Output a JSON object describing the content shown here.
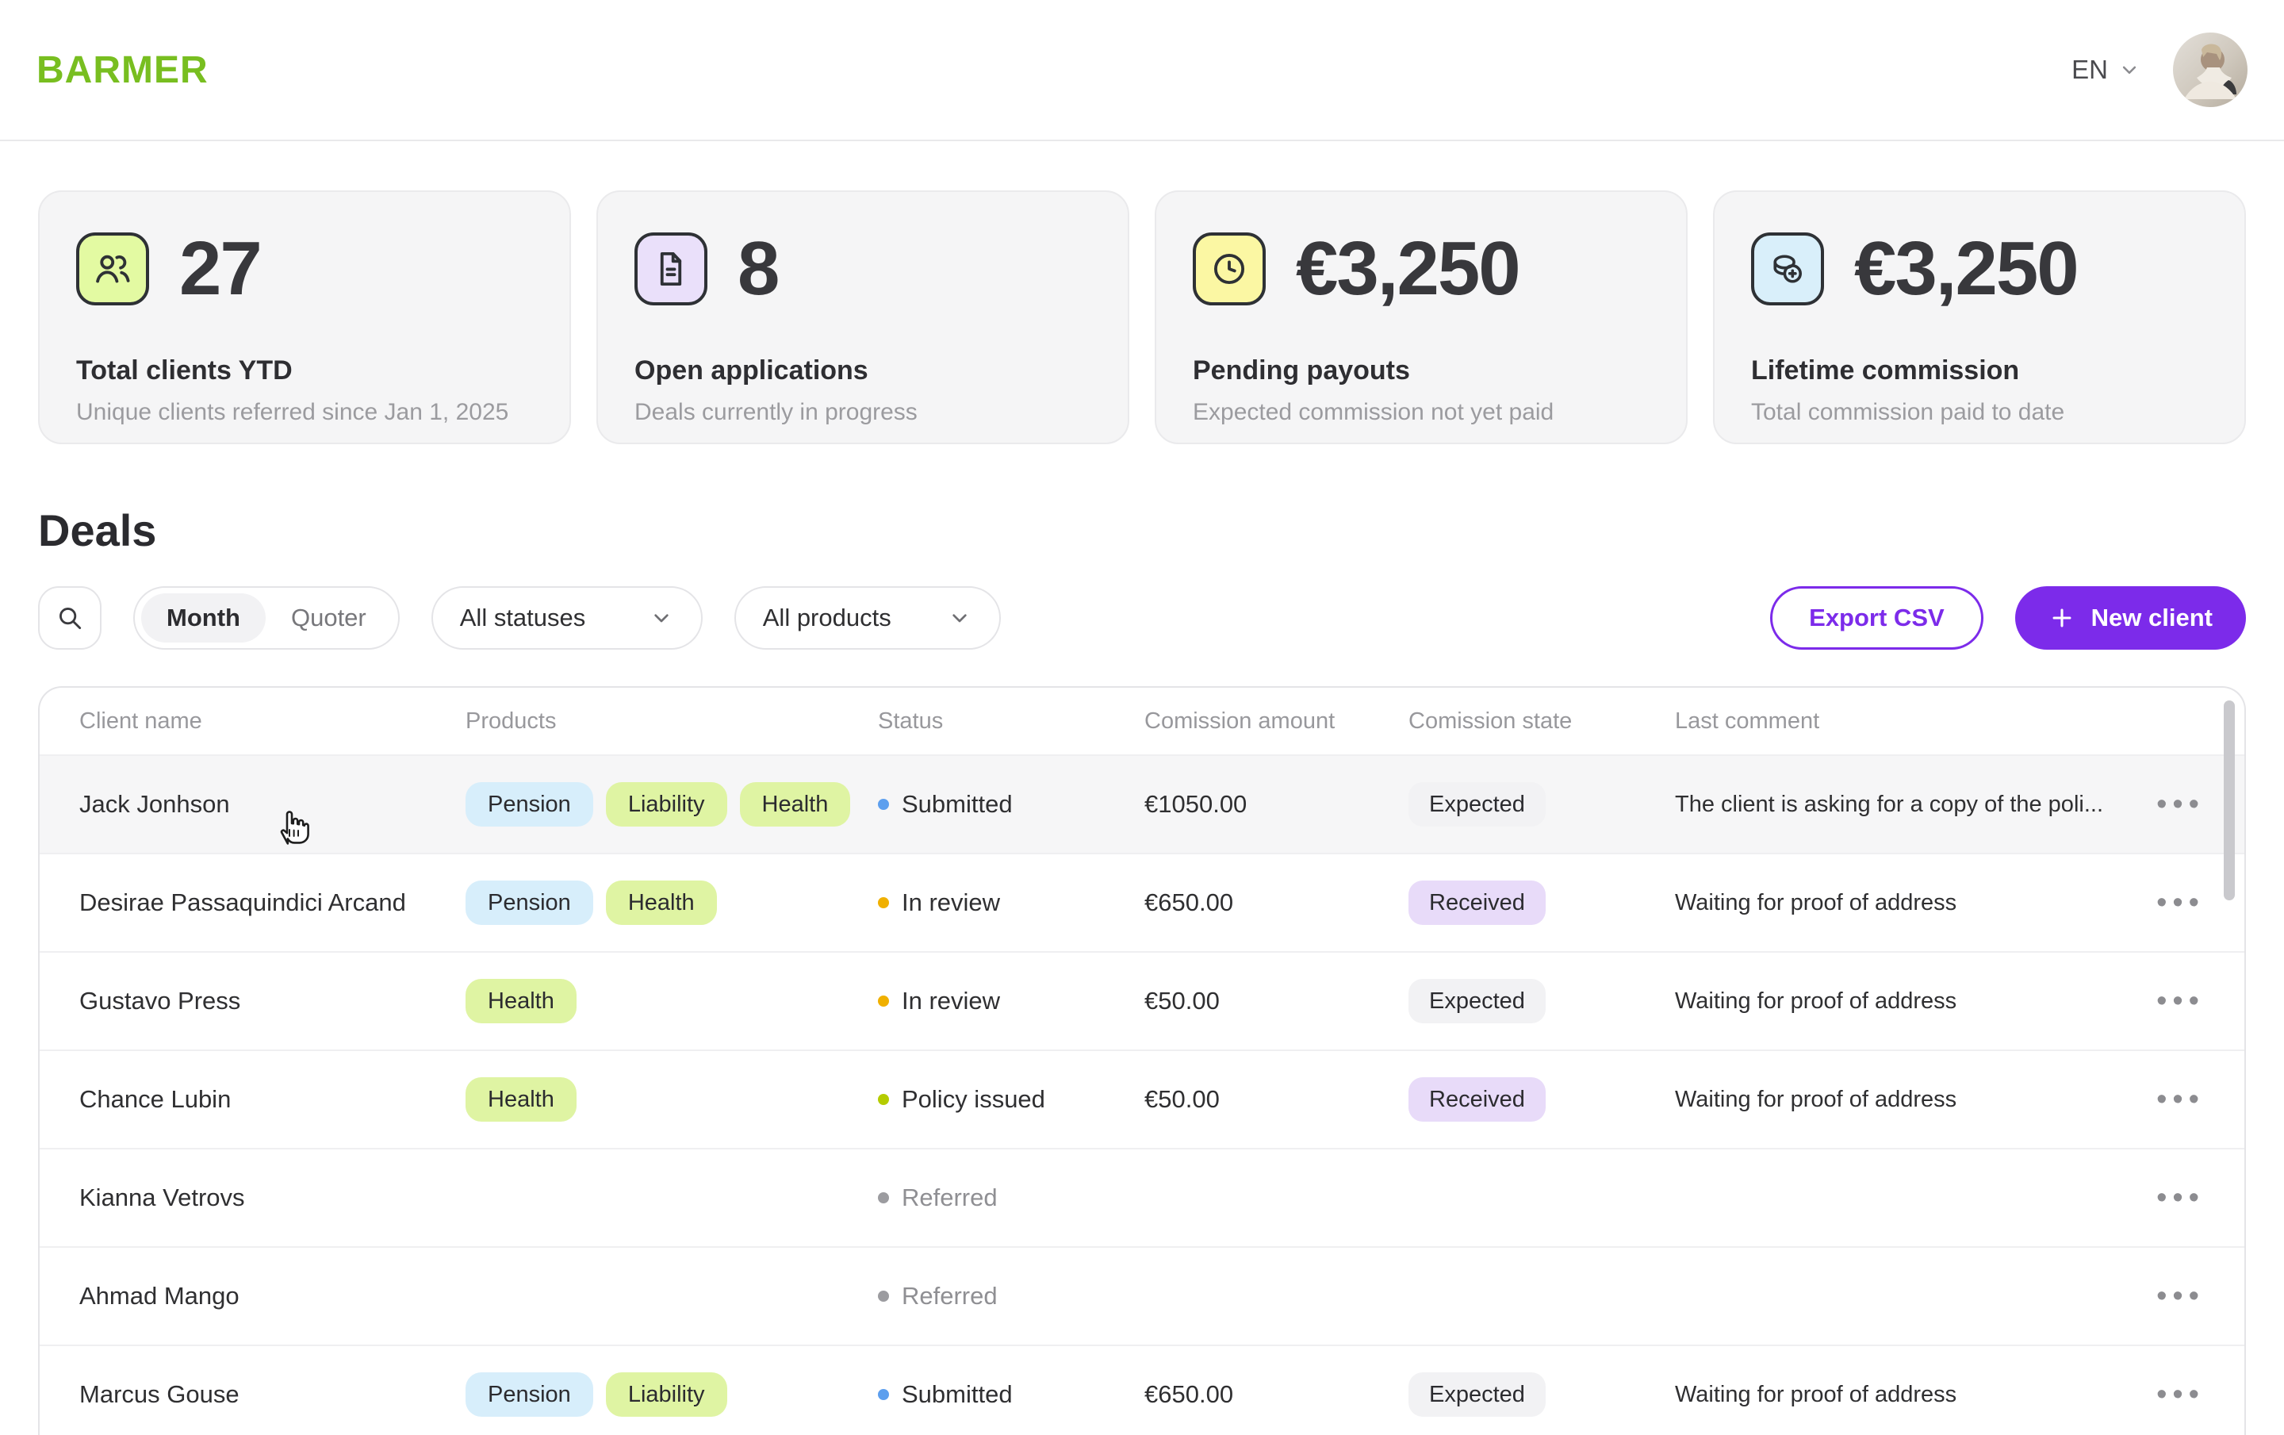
{
  "colors": {
    "brand_green": "#78BE20",
    "accent_purple": "#7C2BEA",
    "tags": {
      "Pension": "#D7EEFB",
      "Liability": "#DFF4A3",
      "Health": "#DFF4A3"
    },
    "states": {
      "Expected": "#F2F2F4",
      "Received": "#E8DBF9"
    },
    "status_dots": {
      "submitted": "#5D9FEE",
      "in_review": "#F0B000",
      "policy_issued": "#B5CC00",
      "referred": "#9C9CA0"
    }
  },
  "header": {
    "logo": "BARMER",
    "language": "EN"
  },
  "stats": [
    {
      "icon": "users-icon",
      "icon_bg": "#E3FAA2",
      "value": "27",
      "title": "Total clients YTD",
      "subtitle": "Unique clients referred since Jan 1, 2025"
    },
    {
      "icon": "document-icon",
      "icon_bg": "#EAE0FA",
      "value": "8",
      "title": "Open applications",
      "subtitle": "Deals currently in progress"
    },
    {
      "icon": "clock-icon",
      "icon_bg": "#FBF7A3",
      "value": "€3,250",
      "title": "Pending payouts",
      "subtitle": "Expected commission not yet paid"
    },
    {
      "icon": "coins-icon",
      "icon_bg": "#D9EFFA",
      "value": "€3,250",
      "title": "Lifetime commission",
      "subtitle": "Total commission paid to date"
    }
  ],
  "deals": {
    "title": "Deals",
    "filters": {
      "month_label": "Month",
      "quoter_label": "Quoter",
      "active_period": "Month",
      "statuses_value": "All statuses",
      "products_value": "All products"
    },
    "actions": {
      "export_label": "Export CSV",
      "new_client_label": "New client"
    },
    "table": {
      "columns": [
        "Client name",
        "Products",
        "Status",
        "Comission amount",
        "Comission state",
        "Last comment"
      ],
      "row_menu_glyph": "•••",
      "rows": [
        {
          "name": "Jack Jonhson",
          "products": [
            "Pension",
            "Liability",
            "Health"
          ],
          "status": {
            "label": "Submitted",
            "key": "submitted"
          },
          "amount": "€1050.00",
          "state": "Expected",
          "comment": "The client is asking for a copy of the poli...",
          "highlighted": true
        },
        {
          "name": "Desirae Passaquindici Arcand",
          "products": [
            "Pension",
            "Health"
          ],
          "status": {
            "label": "In review",
            "key": "in_review"
          },
          "amount": "€650.00",
          "state": "Received",
          "comment": "Waiting for proof of address",
          "highlighted": false
        },
        {
          "name": "Gustavo Press",
          "products": [
            "Health"
          ],
          "status": {
            "label": "In review",
            "key": "in_review"
          },
          "amount": "€50.00",
          "state": "Expected",
          "comment": "Waiting for proof of address",
          "highlighted": false
        },
        {
          "name": "Chance Lubin",
          "products": [
            "Health"
          ],
          "status": {
            "label": "Policy issued",
            "key": "policy_issued"
          },
          "amount": "€50.00",
          "state": "Received",
          "comment": "Waiting for proof of address",
          "highlighted": false
        },
        {
          "name": "Kianna Vetrovs",
          "products": [],
          "status": {
            "label": "Referred",
            "key": "referred"
          },
          "amount": "",
          "state": "",
          "comment": "",
          "highlighted": false
        },
        {
          "name": "Ahmad Mango",
          "products": [],
          "status": {
            "label": "Referred",
            "key": "referred"
          },
          "amount": "",
          "state": "",
          "comment": "",
          "highlighted": false
        },
        {
          "name": "Marcus Gouse",
          "products": [
            "Pension",
            "Liability"
          ],
          "status": {
            "label": "Submitted",
            "key": "submitted"
          },
          "amount": "€650.00",
          "state": "Expected",
          "comment": "Waiting for proof of address",
          "highlighted": false
        }
      ]
    }
  }
}
